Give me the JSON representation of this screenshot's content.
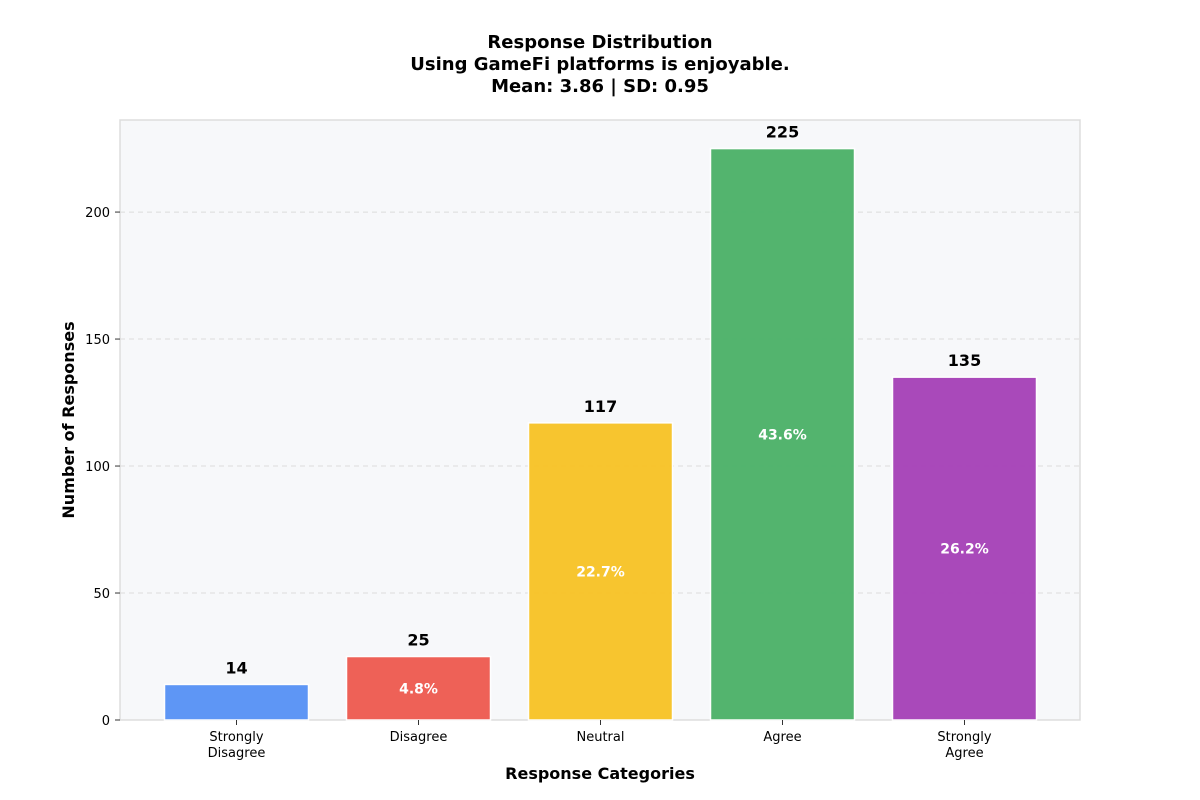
{
  "chart_data": {
    "type": "bar",
    "title_lines": [
      "Response Distribution",
      "Using GameFi platforms is enjoyable.",
      "Mean: 3.86 | SD: 0.95"
    ],
    "categories": [
      [
        "Strongly",
        "Disagree"
      ],
      [
        "Disagree"
      ],
      [
        "Neutral"
      ],
      [
        "Agree"
      ],
      [
        "Strongly",
        "Agree"
      ]
    ],
    "values": [
      14,
      25,
      117,
      225,
      135
    ],
    "value_labels": [
      "14",
      "25",
      "117",
      "225",
      "135"
    ],
    "percent_labels": [
      "",
      "4.8%",
      "22.7%",
      "43.6%",
      "26.2%"
    ],
    "colors": [
      "#5b95f5",
      "#ee5f54",
      "#f8c42b",
      "#50b36c",
      "#a846b9"
    ],
    "xlabel": "Response Categories",
    "ylabel": "Number of Responses",
    "ylim": [
      0,
      236.25
    ],
    "yticks": [
      0,
      50,
      100,
      150,
      200
    ],
    "grid": true,
    "plot_background": "#f7f8fa"
  }
}
